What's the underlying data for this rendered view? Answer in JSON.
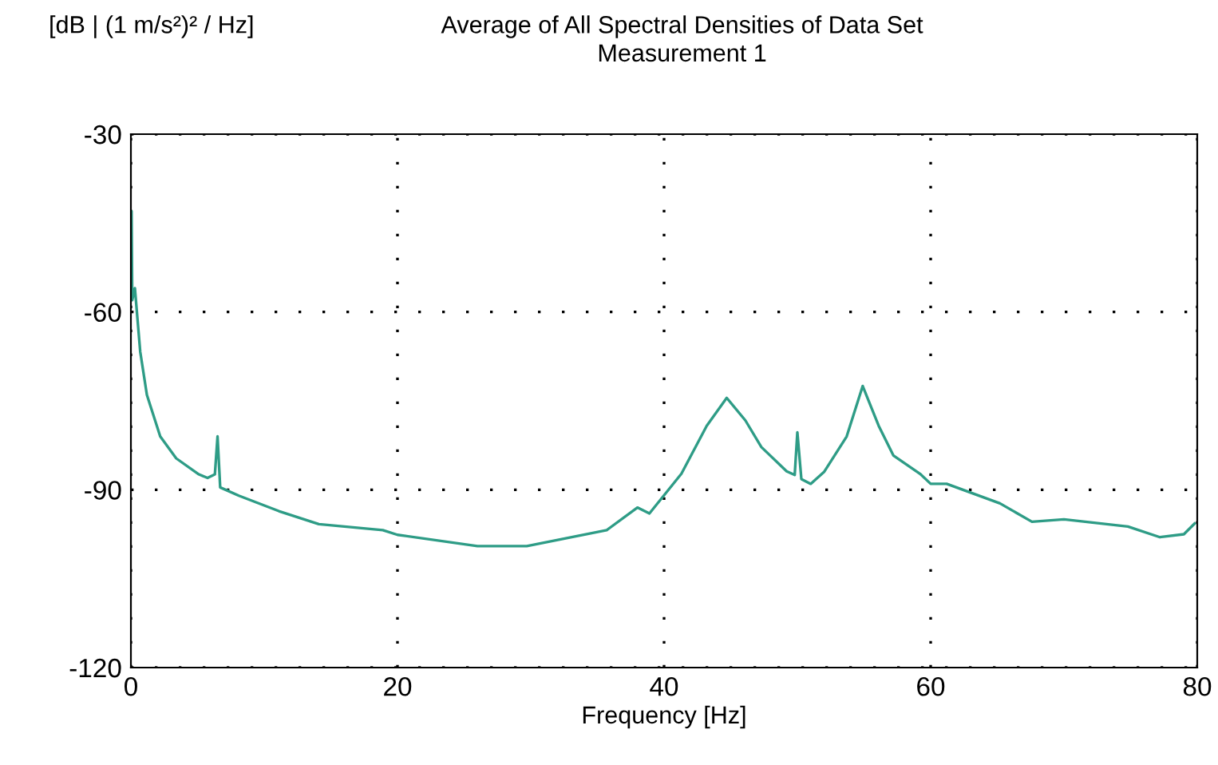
{
  "chart_data": {
    "type": "line",
    "title": "Average of All Spectral Densities of Data Set",
    "subtitle": "Measurement 1",
    "xlabel": "Frequency [Hz]",
    "ylabel": "[dB | (1 m/s²)² / Hz]",
    "series": [
      {
        "color": "#2e9c86",
        "x": [
          0,
          0.05,
          0.1,
          0.3,
          0.7,
          1.2,
          2.2,
          3.4,
          5.1,
          5.75,
          6.3,
          6.5,
          6.7,
          8.1,
          11.1,
          14.1,
          18.9,
          20,
          26,
          29.7,
          35.7,
          38,
          38.9,
          41.3,
          43.2,
          44.7,
          46.1,
          47.3,
          49.2,
          49.8,
          50.0,
          50.3,
          51.0,
          52.0,
          53.7,
          54.9,
          56.1,
          57.2,
          59.2,
          60.0,
          61.2,
          65.2,
          67.6,
          70.0,
          73.2,
          74.8,
          77.2,
          79.0,
          79.8
        ],
        "values": [
          -58,
          -43,
          -58,
          -56,
          -66.7,
          -74,
          -81,
          -84.7,
          -87.4,
          -88,
          -87.4,
          -81,
          -89.6,
          -91,
          -93.6,
          -95.8,
          -96.8,
          -97.6,
          -99.5,
          -99.5,
          -96.8,
          -93,
          -94,
          -87.3,
          -79.2,
          -74.5,
          -78.3,
          -82.8,
          -86.9,
          -87.5,
          -80.3,
          -88.2,
          -89,
          -87,
          -81,
          -72.5,
          -79.2,
          -84.2,
          -87.3,
          -89,
          -89,
          -92.3,
          -95.4,
          -95,
          -95.8,
          -96.2,
          -98,
          -97.5,
          -95.7
        ]
      }
    ],
    "xlim": [
      0,
      80
    ],
    "xticks": [
      0,
      20,
      40,
      60,
      80
    ],
    "ylim": [
      -120,
      -30
    ],
    "yticks": [
      -120,
      -90,
      -60,
      -30
    ],
    "grid": true,
    "line_style": "solid",
    "marker": "none"
  }
}
